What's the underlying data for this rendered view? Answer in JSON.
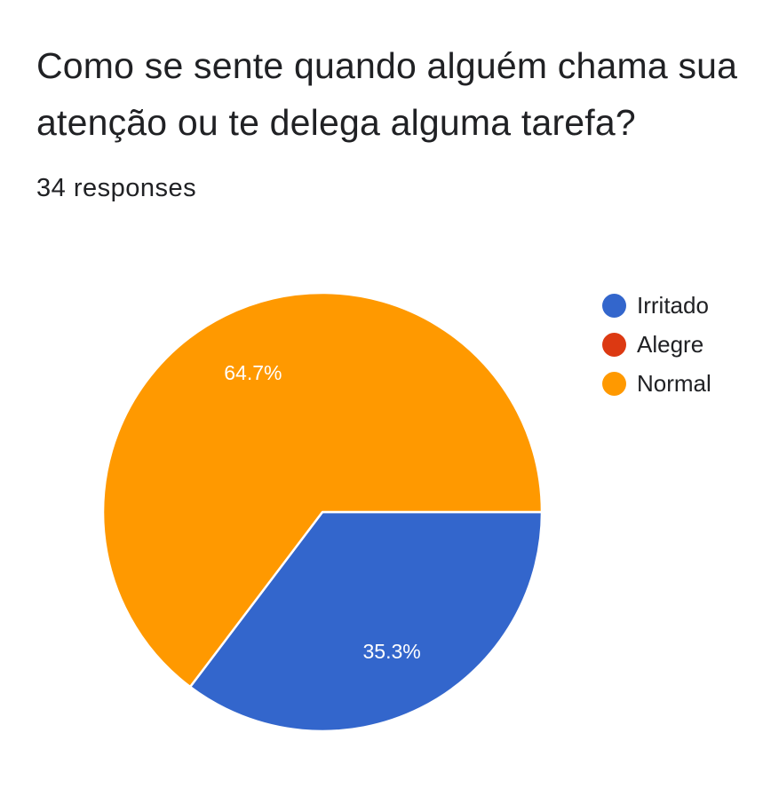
{
  "title": "Como se sente quando alguém chama sua atenção ou te delega alguma tarefa?",
  "responses": "34 responses",
  "chart_data": {
    "type": "pie",
    "title": "Como se sente quando alguém chama sua atenção ou te delega alguma tarefa?",
    "categories": [
      "Irritado",
      "Alegre",
      "Normal"
    ],
    "values": [
      35.3,
      0,
      64.7
    ],
    "unit": "%",
    "colors": [
      "#3366CC",
      "#DC3912",
      "#FF9900"
    ],
    "data_labels": [
      "35.3%",
      "",
      "64.7%"
    ],
    "legend": "right"
  }
}
